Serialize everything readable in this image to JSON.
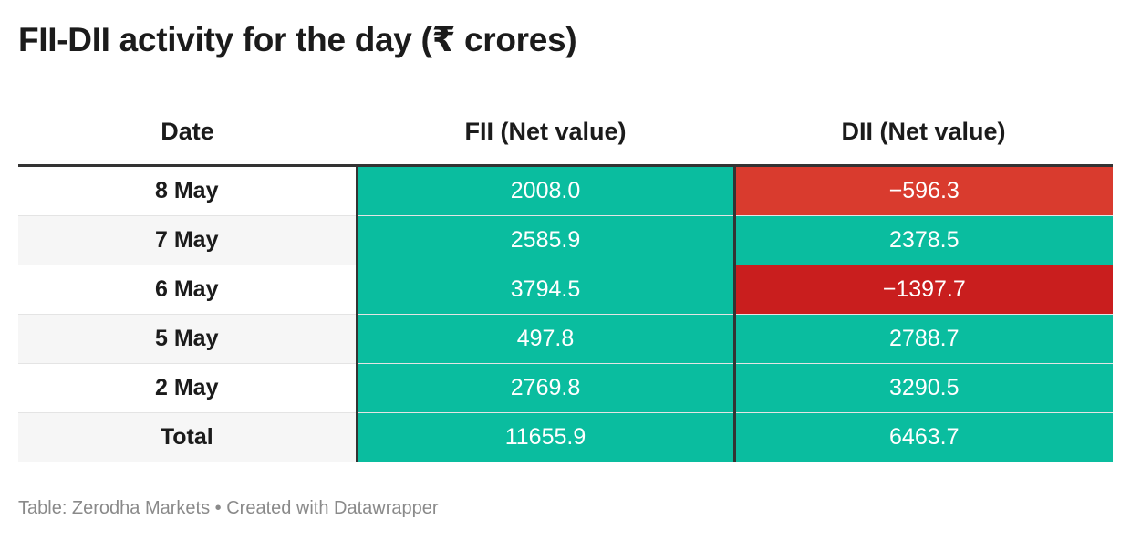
{
  "title": "FII-DII activity for the day (₹ crores)",
  "colors": {
    "positive": "#0abd9f",
    "negative_light": "#d93b2e",
    "negative_dark": "#c91e1e",
    "header_rule": "#333333",
    "zebra": "#f6f6f6"
  },
  "chart_data": {
    "type": "table",
    "columns": [
      "Date",
      "FII (Net value)",
      "DII (Net value)"
    ],
    "rows": [
      {
        "date": "8 May",
        "fii": "2008.0",
        "dii": "−596.3"
      },
      {
        "date": "7 May",
        "fii": "2585.9",
        "dii": "2378.5"
      },
      {
        "date": "6 May",
        "fii": "3794.5",
        "dii": "−1397.7"
      },
      {
        "date": "5 May",
        "fii": "497.8",
        "dii": "2788.7"
      },
      {
        "date": "2 May",
        "fii": "2769.8",
        "dii": "3290.5"
      },
      {
        "date": "Total",
        "fii": "11655.9",
        "dii": "6463.7"
      }
    ]
  },
  "footer": "Table: Zerodha Markets • Created with Datawrapper"
}
